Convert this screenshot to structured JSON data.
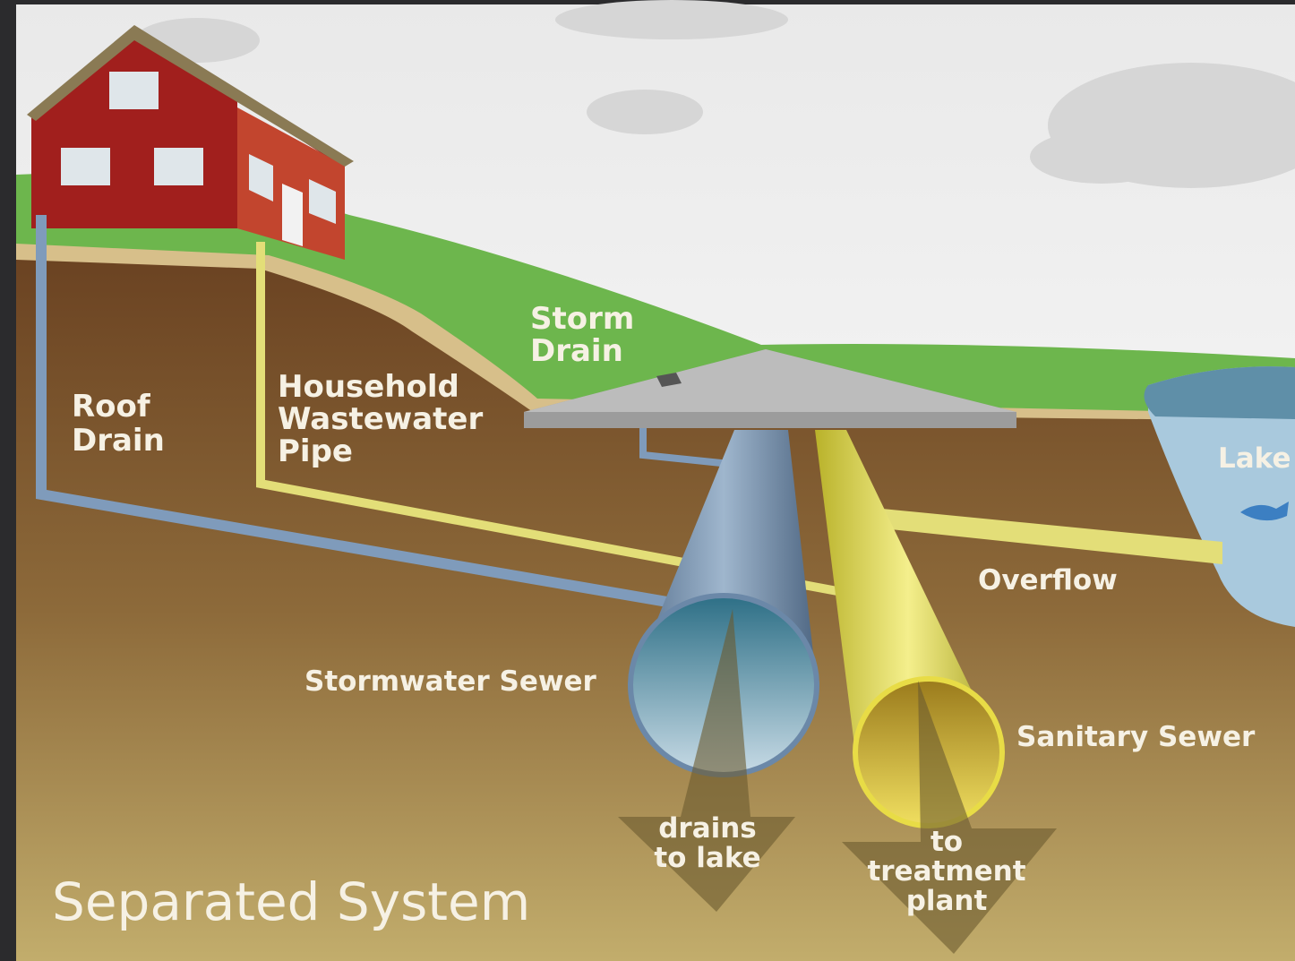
{
  "title": "Separated System",
  "labels": {
    "roof_drain": [
      "Roof",
      "Drain"
    ],
    "household_pipe": [
      "Household",
      "Wastewater",
      "Pipe"
    ],
    "storm_drain": [
      "Storm",
      "Drain"
    ],
    "lake": [
      "Lake"
    ],
    "overflow": [
      "Overflow"
    ],
    "stormwater_sewer": [
      "Stormwater Sewer"
    ],
    "sanitary_sewer": [
      "Sanitary Sewer"
    ],
    "drains_to_lake": [
      "drains",
      "to lake"
    ],
    "to_treatment_plant": [
      "to",
      "treatment",
      "plant"
    ]
  }
}
